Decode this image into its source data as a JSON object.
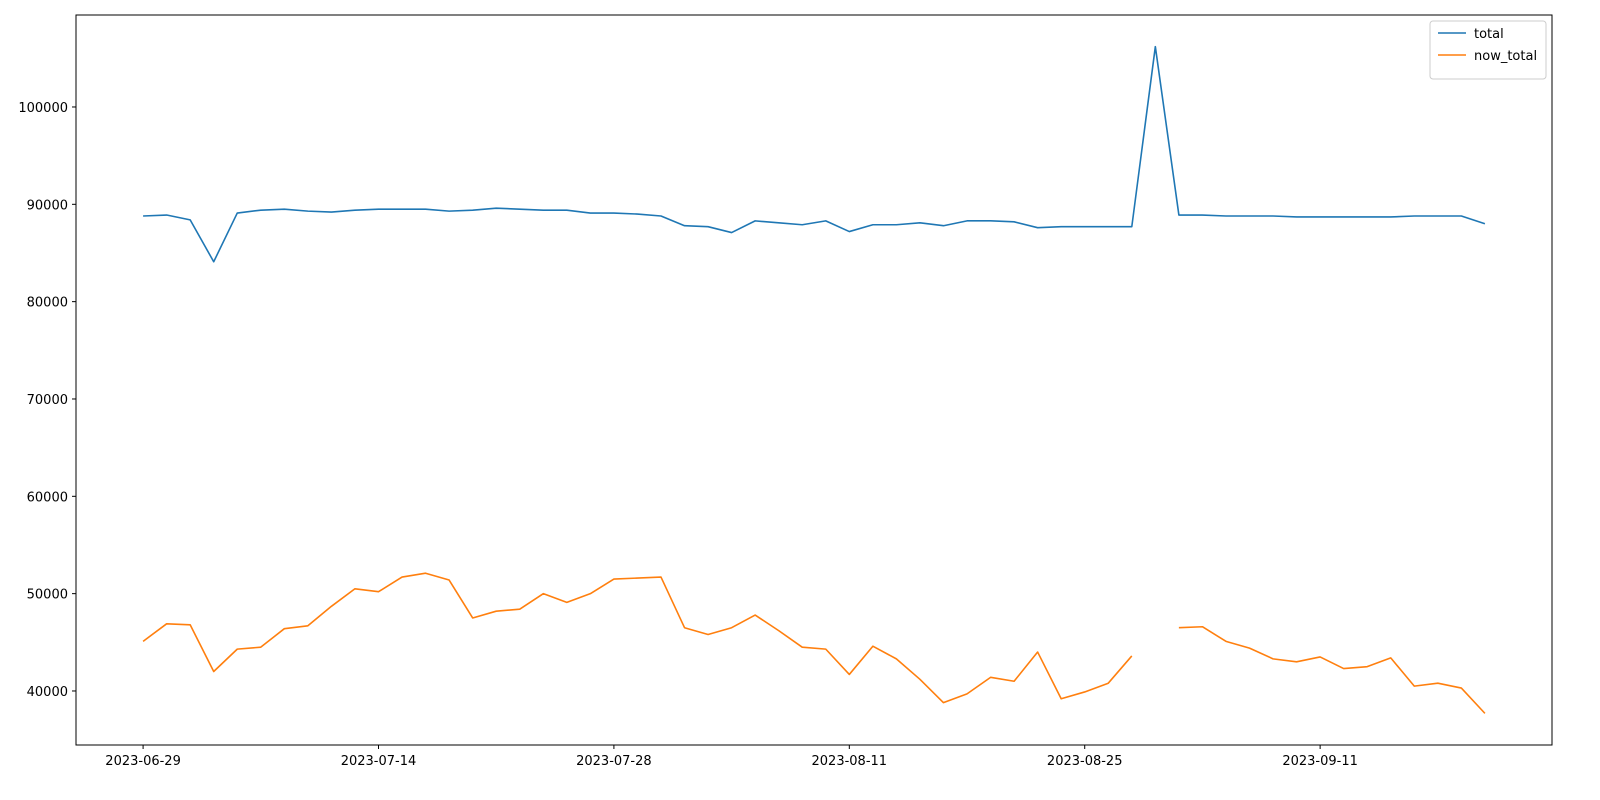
{
  "chart_data": {
    "type": "line",
    "categories": [
      "2023-06-29",
      null,
      null,
      null,
      null,
      null,
      null,
      null,
      null,
      null,
      "2023-07-14",
      null,
      null,
      null,
      null,
      null,
      null,
      null,
      null,
      null,
      "2023-07-28",
      null,
      null,
      null,
      null,
      null,
      null,
      null,
      null,
      null,
      "2023-08-11",
      null,
      null,
      null,
      null,
      null,
      null,
      null,
      null,
      null,
      "2023-08-25",
      null,
      null,
      null,
      null,
      null,
      null,
      null,
      null,
      null,
      "2023-09-11",
      null,
      null,
      null,
      null,
      null,
      null,
      null
    ],
    "series": [
      {
        "name": "total",
        "color": "#1f77b4",
        "values": [
          88800,
          88900,
          88400,
          84100,
          89100,
          89400,
          89500,
          89300,
          89200,
          89400,
          89500,
          89500,
          89500,
          89300,
          89400,
          89600,
          89500,
          89400,
          89400,
          89100,
          89100,
          89000,
          88800,
          87800,
          87700,
          87100,
          88300,
          88100,
          87900,
          88300,
          87200,
          87900,
          87900,
          88100,
          87800,
          88300,
          88300,
          88200,
          87600,
          87700,
          87700,
          87700,
          87700,
          106200,
          88900,
          88900,
          88800,
          88800,
          88800,
          88700,
          88700,
          88700,
          88700,
          88700,
          88800,
          88800,
          88800,
          88000
        ]
      },
      {
        "name": "now_total",
        "color": "#ff7f0e",
        "values": [
          45100,
          46900,
          46800,
          42000,
          44300,
          44500,
          46400,
          46700,
          48700,
          50500,
          50200,
          51700,
          52100,
          51400,
          47500,
          48200,
          48400,
          50000,
          49100,
          50000,
          51500,
          51600,
          51700,
          46500,
          45800,
          46500,
          47800,
          46200,
          44500,
          44300,
          41700,
          44600,
          43300,
          41200,
          38800,
          39700,
          41400,
          41000,
          44000,
          39200,
          39900,
          40800,
          43600,
          null,
          46500,
          46600,
          45100,
          44400,
          43300,
          43000,
          43500,
          42300,
          42500,
          43400,
          40500,
          40800,
          40300,
          37700
        ]
      }
    ],
    "ylim": [
      34450,
      109450
    ],
    "yticks": [
      40000,
      50000,
      60000,
      70000,
      80000,
      90000,
      100000
    ],
    "grid": false,
    "legend": "upper right"
  }
}
